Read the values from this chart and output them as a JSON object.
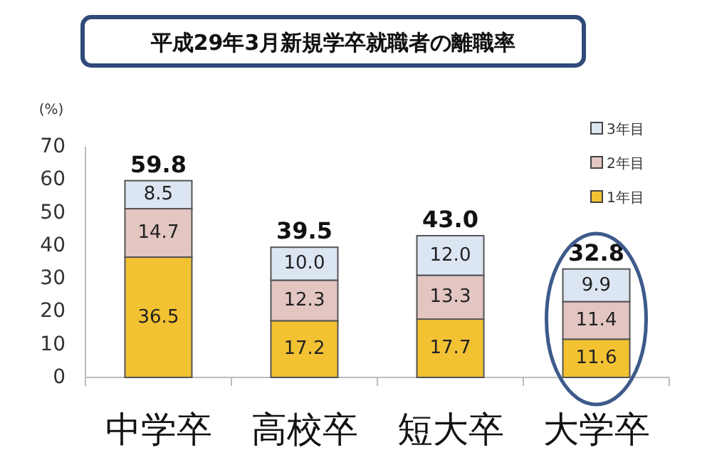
{
  "chart_data": {
    "type": "bar",
    "stacked": true,
    "title": "平成29年3月新規学卒就職者の離職率",
    "ylabel": "(%)",
    "categories": [
      "中学卒",
      "高校卒",
      "短大卒",
      "大学卒"
    ],
    "ylim": [
      0,
      70
    ],
    "yticks": [
      0,
      10,
      20,
      30,
      40,
      50,
      60,
      70
    ],
    "grid": false,
    "legend": "top right",
    "series": [
      {
        "name": "1年目",
        "color": "#f2c232",
        "values": [
          36.5,
          17.2,
          17.7,
          11.6
        ],
        "value_labels": [
          "36.5",
          "17.2",
          "17.7",
          "11.6"
        ]
      },
      {
        "name": "2年目",
        "color": "#e3c6c2",
        "values": [
          14.7,
          12.3,
          13.3,
          11.4
        ],
        "value_labels": [
          "14.7",
          "12.3",
          "13.3",
          "11.4"
        ]
      },
      {
        "name": "3年目",
        "color": "#dce6f2",
        "values": [
          8.5,
          10.0,
          12.0,
          9.9
        ],
        "value_labels": [
          "8.5",
          "10.0",
          "12.0",
          "9.9"
        ]
      }
    ],
    "totals": [
      "59.8",
      "39.5",
      "43.0",
      "32.8"
    ]
  }
}
